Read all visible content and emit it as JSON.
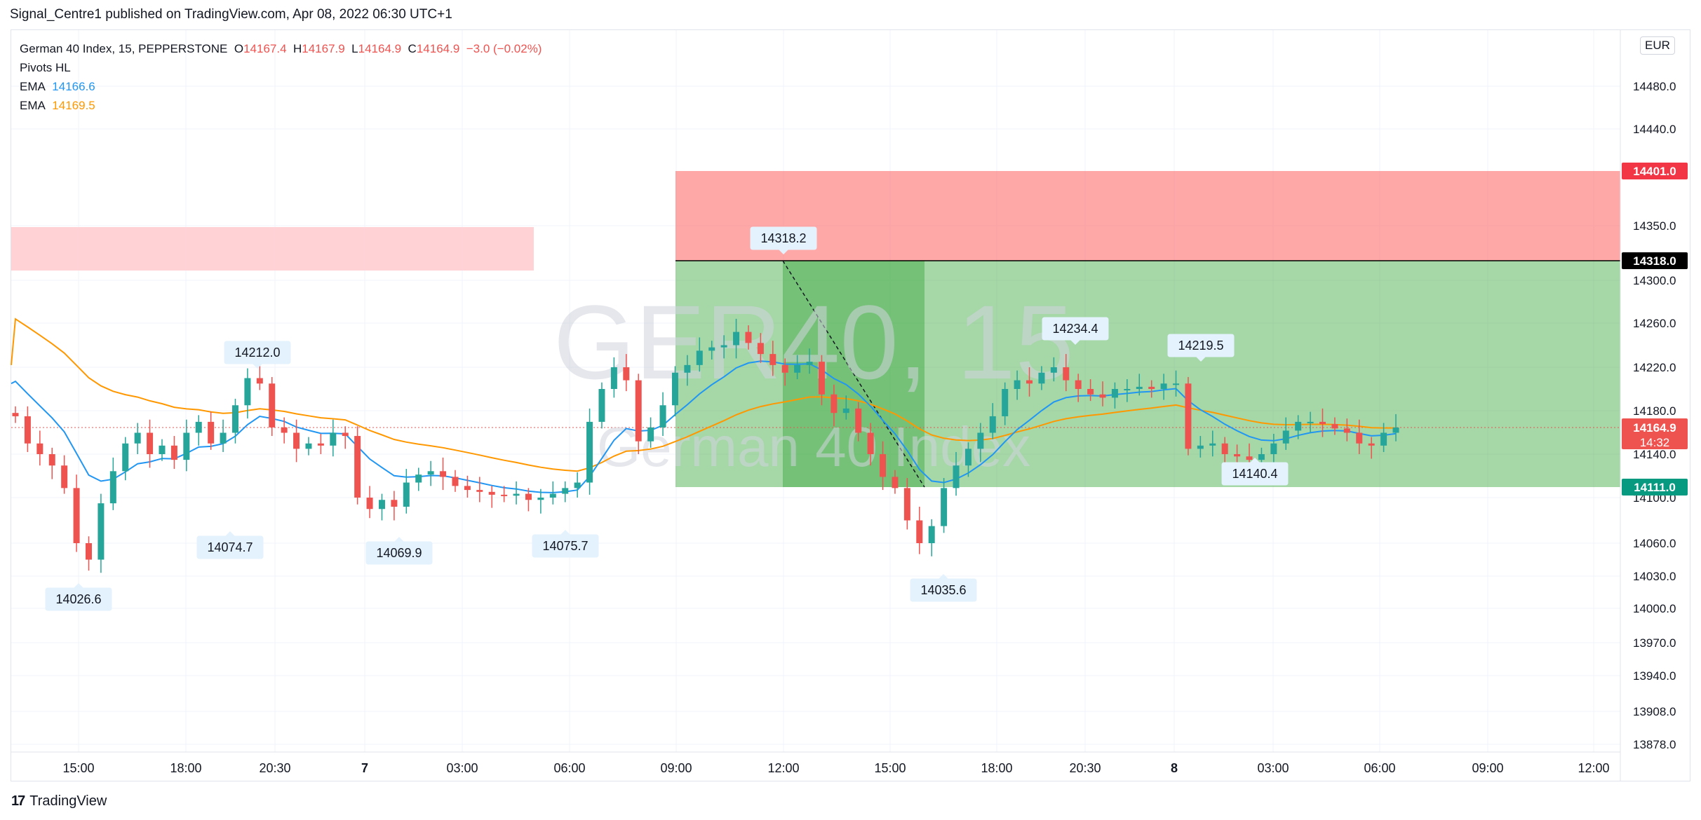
{
  "header": {
    "published": "Signal_Centre1 published on TradingView.com, Apr 08, 2022 06:30 UTC+1"
  },
  "legend": {
    "symbol": "German 40 Index, 15, PEPPERSTONE",
    "o_label": "O",
    "o": "14167.4",
    "h_label": "H",
    "h": "14167.9",
    "l_label": "L",
    "l": "14164.9",
    "c_label": "C",
    "c": "14164.9",
    "change": "−3.0 (−0.02%)",
    "pivots": "Pivots HL",
    "ema1_label": "EMA",
    "ema1": "14166.6",
    "ema1_color": "#2196f3",
    "ema2_label": "EMA",
    "ema2": "14169.5",
    "ema2_color": "#ff9800"
  },
  "watermark": {
    "line1": "GER40, 15",
    "line2": "German 40 Index"
  },
  "currency": "EUR",
  "footer": {
    "brand": "TradingView",
    "logo": "17"
  },
  "chart_data": {
    "type": "candlestick",
    "instrument": "German 40 Index, 15, PEPPERSTONE",
    "colors": {
      "up": "#26a69a",
      "down": "#ef5350",
      "ema_fast": "#2196f3",
      "ema_slow": "#ff9800",
      "stop_zone": "#ff5252",
      "target_zone": "#4caf50",
      "supply_zone": "#ffcdd2"
    },
    "x_ticks": [
      "15:00",
      "18:00",
      "20:30",
      "7",
      "03:00",
      "06:00",
      "09:00",
      "12:00",
      "15:00",
      "18:00",
      "20:30",
      "8",
      "03:00",
      "06:00",
      "09:00",
      "12:00"
    ],
    "y_ticks": [
      "14480.0",
      "14440.0",
      "14350.0",
      "14300.0",
      "14260.0",
      "14220.0",
      "14180.0",
      "14140.0",
      "14100.0",
      "14060.0",
      "14030.0",
      "14000.0",
      "13970.0",
      "13940.0",
      "13908.0",
      "13878.0"
    ],
    "price_labels": [
      {
        "value": "14401.0",
        "kind": "stop"
      },
      {
        "value": "14318.0",
        "kind": "entry"
      },
      {
        "value": "14164.9",
        "kind": "last",
        "countdown": "14:32"
      },
      {
        "value": "14111.0",
        "kind": "target"
      }
    ],
    "pivots": [
      {
        "label": "14026.6",
        "type": "low"
      },
      {
        "label": "14212.0",
        "type": "high"
      },
      {
        "label": "14074.7",
        "type": "low"
      },
      {
        "label": "14069.9",
        "type": "low"
      },
      {
        "label": "14075.7",
        "type": "low"
      },
      {
        "label": "14318.2",
        "type": "high"
      },
      {
        "label": "14035.6",
        "type": "low"
      },
      {
        "label": "14234.4",
        "type": "high"
      },
      {
        "label": "14219.5",
        "type": "high"
      },
      {
        "label": "14140.4",
        "type": "low"
      }
    ],
    "close_series": [
      14175,
      14150,
      14140,
      14130,
      14110,
      14060,
      14045,
      14095,
      14125,
      14150,
      14160,
      14140,
      14148,
      14135,
      14160,
      14170,
      14150,
      14160,
      14185,
      14210,
      14205,
      14165,
      14160,
      14145,
      14150,
      14148,
      14160,
      14157,
      14100,
      14090,
      14098,
      14092,
      14115,
      14122,
      14125,
      14120,
      14112,
      14108,
      14106,
      14103,
      14102,
      14104,
      14098,
      14100,
      14104,
      14110,
      14115,
      14170,
      14200,
      14220,
      14208,
      14152,
      14165,
      14185,
      14215,
      14222,
      14235,
      14238,
      14240,
      14252,
      14242,
      14232,
      14222,
      14215,
      14222,
      14225,
      14195,
      14178,
      14182,
      14160,
      14140,
      14120,
      14110,
      14080,
      14060,
      14075,
      14110,
      14130,
      14145,
      14160,
      14175,
      14200,
      14208,
      14205,
      14215,
      14220,
      14208,
      14200,
      14195,
      14192,
      14200,
      14200,
      14202,
      14200,
      14205,
      14205,
      14145,
      14148,
      14150,
      14140,
      14138,
      14135,
      14140,
      14150,
      14162,
      14170,
      14170,
      14168,
      14164,
      14160,
      14150,
      14148,
      14160,
      14164.9
    ],
    "ema_fast_start": 14215,
    "ema_slow_start": 14270,
    "ylim": [
      13878,
      14520
    ]
  }
}
